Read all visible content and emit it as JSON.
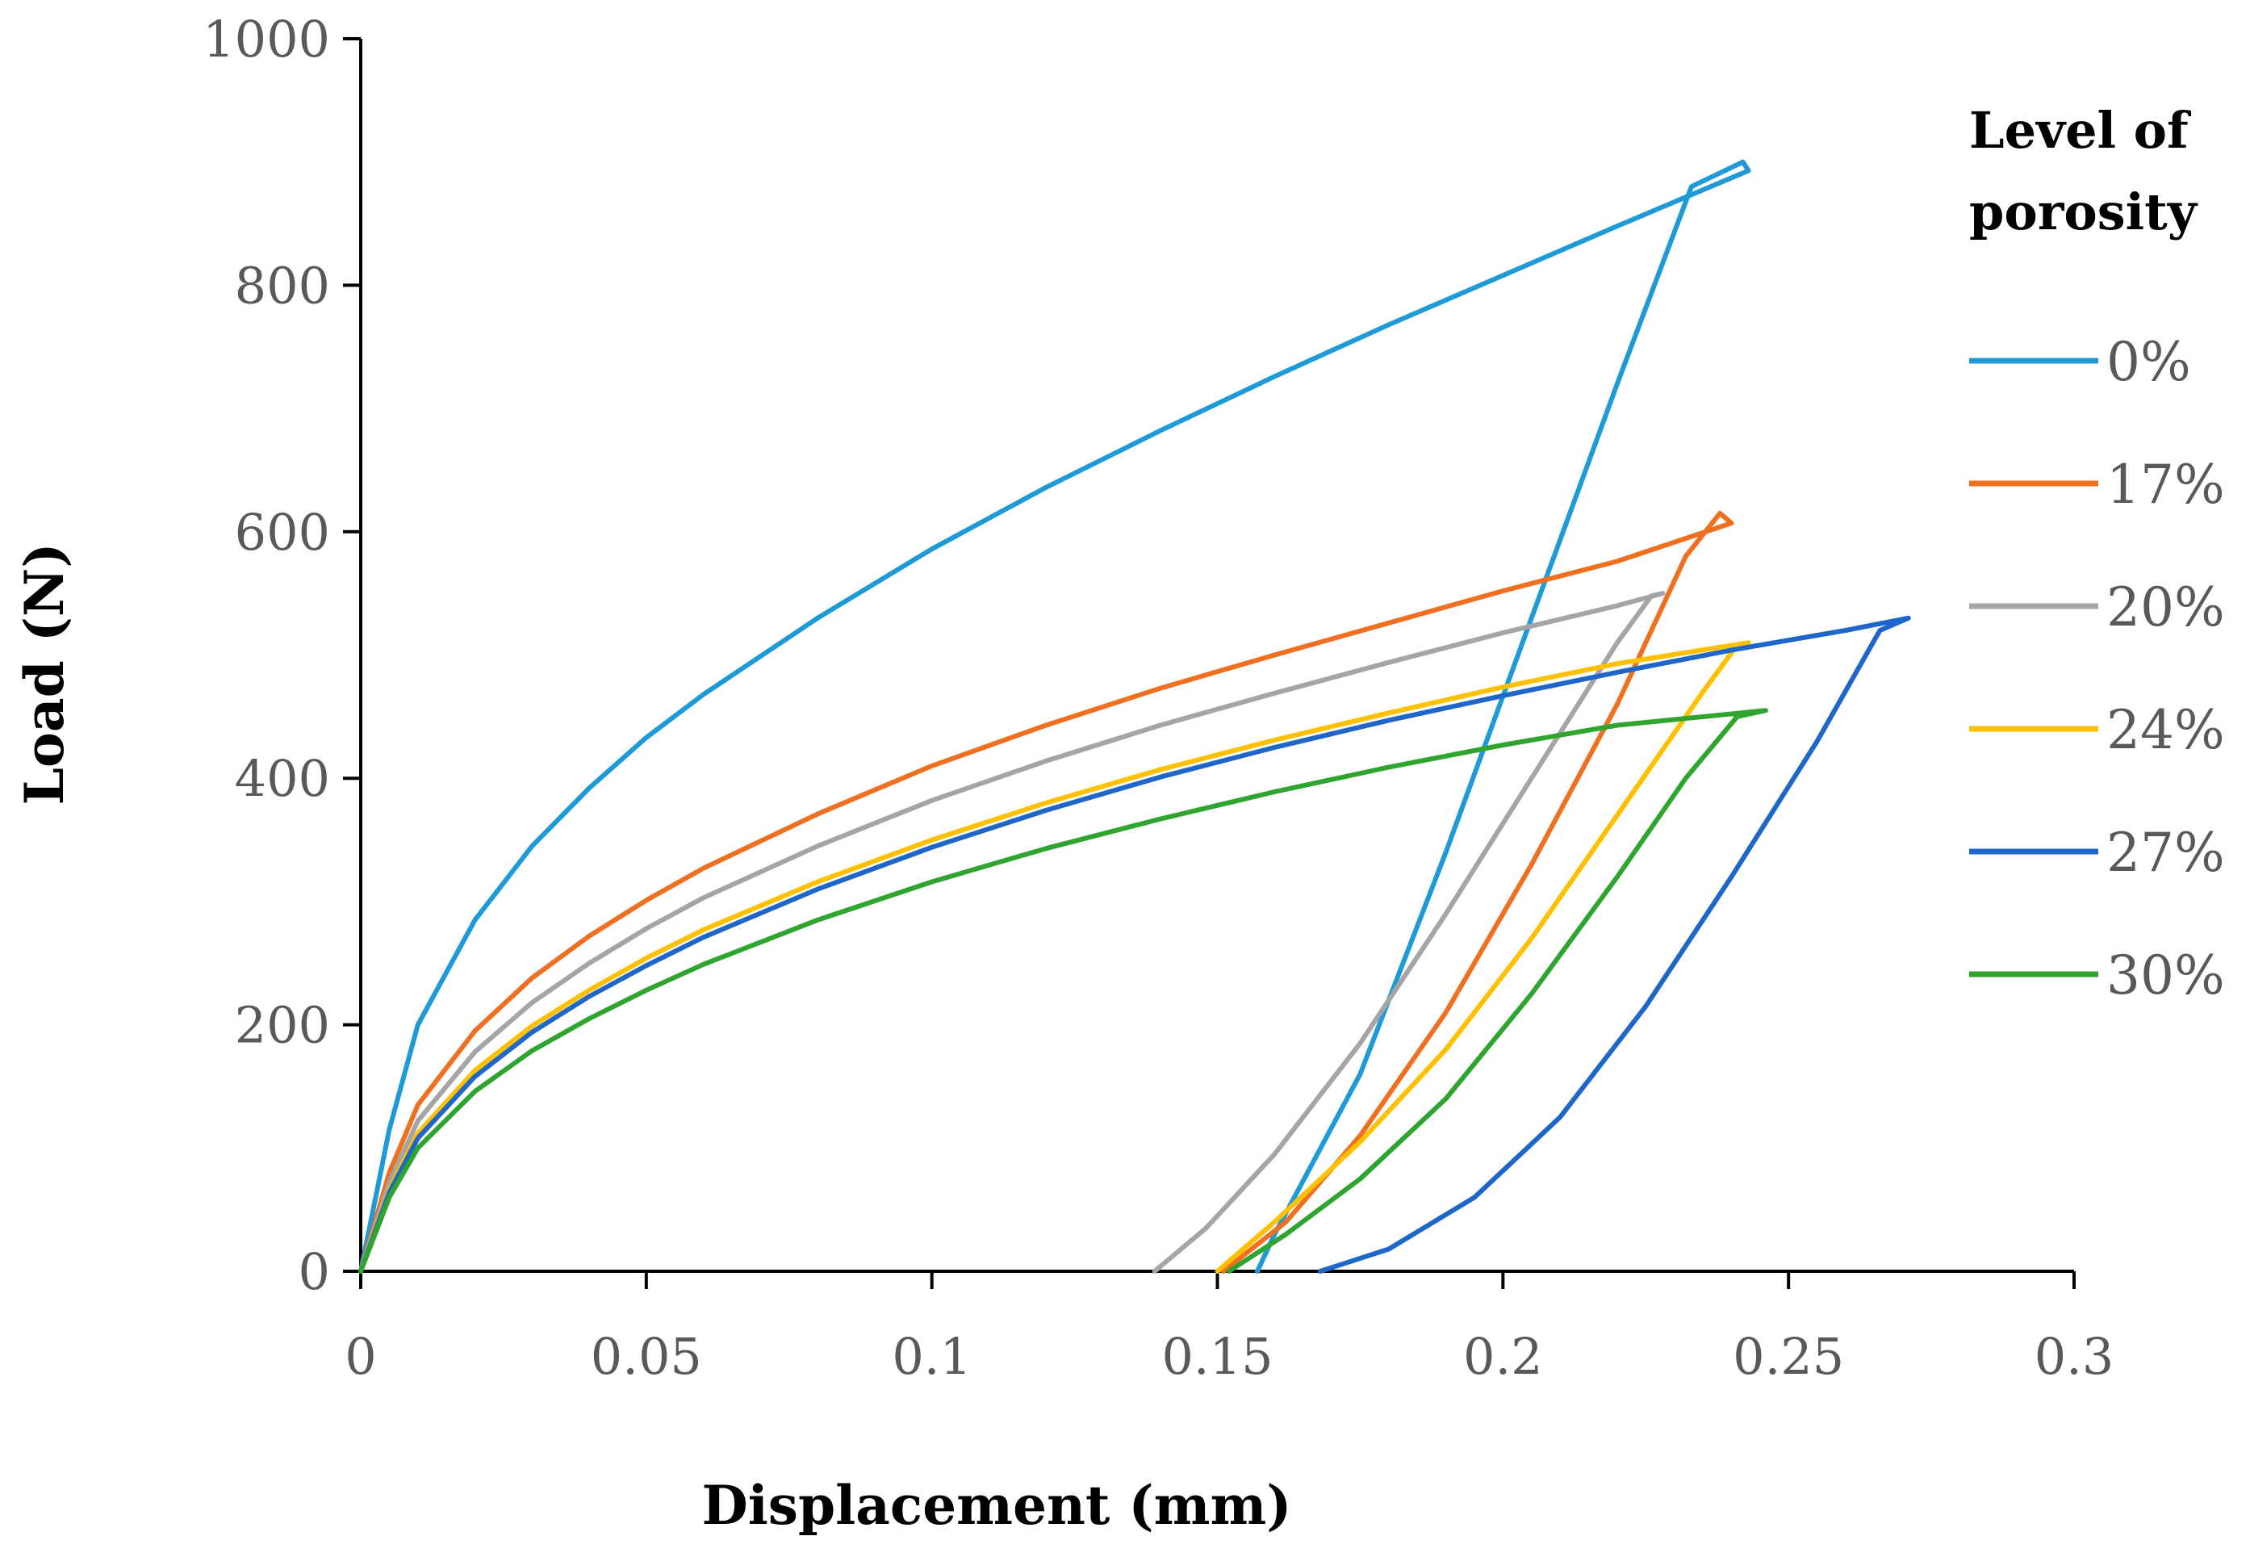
{
  "chart_data": {
    "type": "line",
    "title": "",
    "xlabel": "Displacement (mm)",
    "ylabel": "Load (N)",
    "xlim": [
      0,
      0.3
    ],
    "ylim": [
      0,
      1000
    ],
    "x_ticks": [
      0,
      0.05,
      0.1,
      0.15,
      0.2,
      0.25,
      0.3
    ],
    "x_tick_labels": [
      "0",
      "0.05",
      "0.1",
      "0.15",
      "0.2",
      "0.25",
      "0.3"
    ],
    "y_ticks": [
      0,
      200,
      400,
      600,
      800,
      1000
    ],
    "y_tick_labels": [
      "0",
      "200",
      "400",
      "600",
      "800",
      "1000"
    ],
    "grid": false,
    "legend": {
      "title_lines": [
        "Level of",
        "porosity"
      ],
      "placement": "right"
    },
    "series": [
      {
        "name": "0%",
        "color": "#1E9BD7",
        "points": [
          [
            0,
            0
          ],
          [
            0.005,
            115
          ],
          [
            0.01,
            200
          ],
          [
            0.02,
            285
          ],
          [
            0.03,
            345
          ],
          [
            0.04,
            392
          ],
          [
            0.05,
            433
          ],
          [
            0.06,
            468
          ],
          [
            0.08,
            530
          ],
          [
            0.1,
            586
          ],
          [
            0.12,
            636
          ],
          [
            0.14,
            682
          ],
          [
            0.16,
            726
          ],
          [
            0.18,
            768
          ],
          [
            0.2,
            808
          ],
          [
            0.22,
            848
          ],
          [
            0.243,
            893
          ],
          [
            0.242,
            900
          ],
          [
            0.233,
            880
          ],
          [
            0.22,
            720
          ],
          [
            0.205,
            530
          ],
          [
            0.19,
            340
          ],
          [
            0.175,
            160
          ],
          [
            0.16,
            30
          ],
          [
            0.157,
            0
          ]
        ]
      },
      {
        "name": "17%",
        "color": "#F07021",
        "points": [
          [
            0,
            0
          ],
          [
            0.005,
            80
          ],
          [
            0.01,
            135
          ],
          [
            0.02,
            195
          ],
          [
            0.03,
            238
          ],
          [
            0.04,
            272
          ],
          [
            0.05,
            301
          ],
          [
            0.06,
            327
          ],
          [
            0.08,
            371
          ],
          [
            0.1,
            410
          ],
          [
            0.12,
            443
          ],
          [
            0.14,
            473
          ],
          [
            0.16,
            500
          ],
          [
            0.18,
            526
          ],
          [
            0.2,
            552
          ],
          [
            0.22,
            576
          ],
          [
            0.24,
            607
          ],
          [
            0.238,
            615
          ],
          [
            0.232,
            580
          ],
          [
            0.22,
            460
          ],
          [
            0.205,
            330
          ],
          [
            0.19,
            210
          ],
          [
            0.175,
            110
          ],
          [
            0.162,
            40
          ],
          [
            0.151,
            0
          ]
        ]
      },
      {
        "name": "20%",
        "color": "#A5A5A5",
        "points": [
          [
            0,
            0
          ],
          [
            0.005,
            72
          ],
          [
            0.01,
            122
          ],
          [
            0.02,
            178
          ],
          [
            0.03,
            218
          ],
          [
            0.04,
            250
          ],
          [
            0.05,
            278
          ],
          [
            0.06,
            303
          ],
          [
            0.08,
            345
          ],
          [
            0.1,
            382
          ],
          [
            0.12,
            414
          ],
          [
            0.14,
            443
          ],
          [
            0.16,
            469
          ],
          [
            0.18,
            494
          ],
          [
            0.2,
            518
          ],
          [
            0.22,
            540
          ],
          [
            0.228,
            550
          ],
          [
            0.226,
            548
          ],
          [
            0.22,
            510
          ],
          [
            0.205,
            400
          ],
          [
            0.19,
            290
          ],
          [
            0.175,
            185
          ],
          [
            0.16,
            95
          ],
          [
            0.148,
            35
          ],
          [
            0.139,
            0
          ]
        ]
      },
      {
        "name": "24%",
        "color": "#FFC000",
        "points": [
          [
            0,
            0
          ],
          [
            0.005,
            66
          ],
          [
            0.01,
            112
          ],
          [
            0.02,
            163
          ],
          [
            0.03,
            199
          ],
          [
            0.04,
            228
          ],
          [
            0.05,
            254
          ],
          [
            0.06,
            277
          ],
          [
            0.08,
            316
          ],
          [
            0.1,
            350
          ],
          [
            0.12,
            380
          ],
          [
            0.14,
            407
          ],
          [
            0.16,
            431
          ],
          [
            0.18,
            453
          ],
          [
            0.2,
            474
          ],
          [
            0.22,
            493
          ],
          [
            0.243,
            510
          ],
          [
            0.241,
            508
          ],
          [
            0.235,
            470
          ],
          [
            0.22,
            370
          ],
          [
            0.205,
            270
          ],
          [
            0.19,
            180
          ],
          [
            0.175,
            105
          ],
          [
            0.16,
            40
          ],
          [
            0.15,
            0
          ]
        ]
      },
      {
        "name": "27%",
        "color": "#1F66C9",
        "points": [
          [
            0,
            0
          ],
          [
            0.005,
            64
          ],
          [
            0.01,
            108
          ],
          [
            0.02,
            158
          ],
          [
            0.03,
            194
          ],
          [
            0.04,
            223
          ],
          [
            0.05,
            248
          ],
          [
            0.06,
            271
          ],
          [
            0.08,
            310
          ],
          [
            0.1,
            344
          ],
          [
            0.12,
            374
          ],
          [
            0.14,
            401
          ],
          [
            0.16,
            425
          ],
          [
            0.18,
            447
          ],
          [
            0.2,
            467
          ],
          [
            0.22,
            486
          ],
          [
            0.24,
            504
          ],
          [
            0.26,
            520
          ],
          [
            0.271,
            530
          ],
          [
            0.266,
            520
          ],
          [
            0.255,
            430
          ],
          [
            0.24,
            320
          ],
          [
            0.225,
            215
          ],
          [
            0.21,
            125
          ],
          [
            0.195,
            60
          ],
          [
            0.18,
            18
          ],
          [
            0.168,
            0
          ]
        ]
      },
      {
        "name": "30%",
        "color": "#2FA530",
        "points": [
          [
            0,
            0
          ],
          [
            0.005,
            60
          ],
          [
            0.01,
            100
          ],
          [
            0.02,
            146
          ],
          [
            0.03,
            179
          ],
          [
            0.04,
            205
          ],
          [
            0.05,
            228
          ],
          [
            0.06,
            249
          ],
          [
            0.08,
            285
          ],
          [
            0.1,
            316
          ],
          [
            0.12,
            343
          ],
          [
            0.14,
            367
          ],
          [
            0.16,
            389
          ],
          [
            0.18,
            409
          ],
          [
            0.2,
            427
          ],
          [
            0.22,
            443
          ],
          [
            0.246,
            455
          ],
          [
            0.241,
            450
          ],
          [
            0.232,
            400
          ],
          [
            0.22,
            320
          ],
          [
            0.205,
            225
          ],
          [
            0.19,
            140
          ],
          [
            0.175,
            75
          ],
          [
            0.162,
            30
          ],
          [
            0.152,
            0
          ]
        ]
      }
    ]
  }
}
